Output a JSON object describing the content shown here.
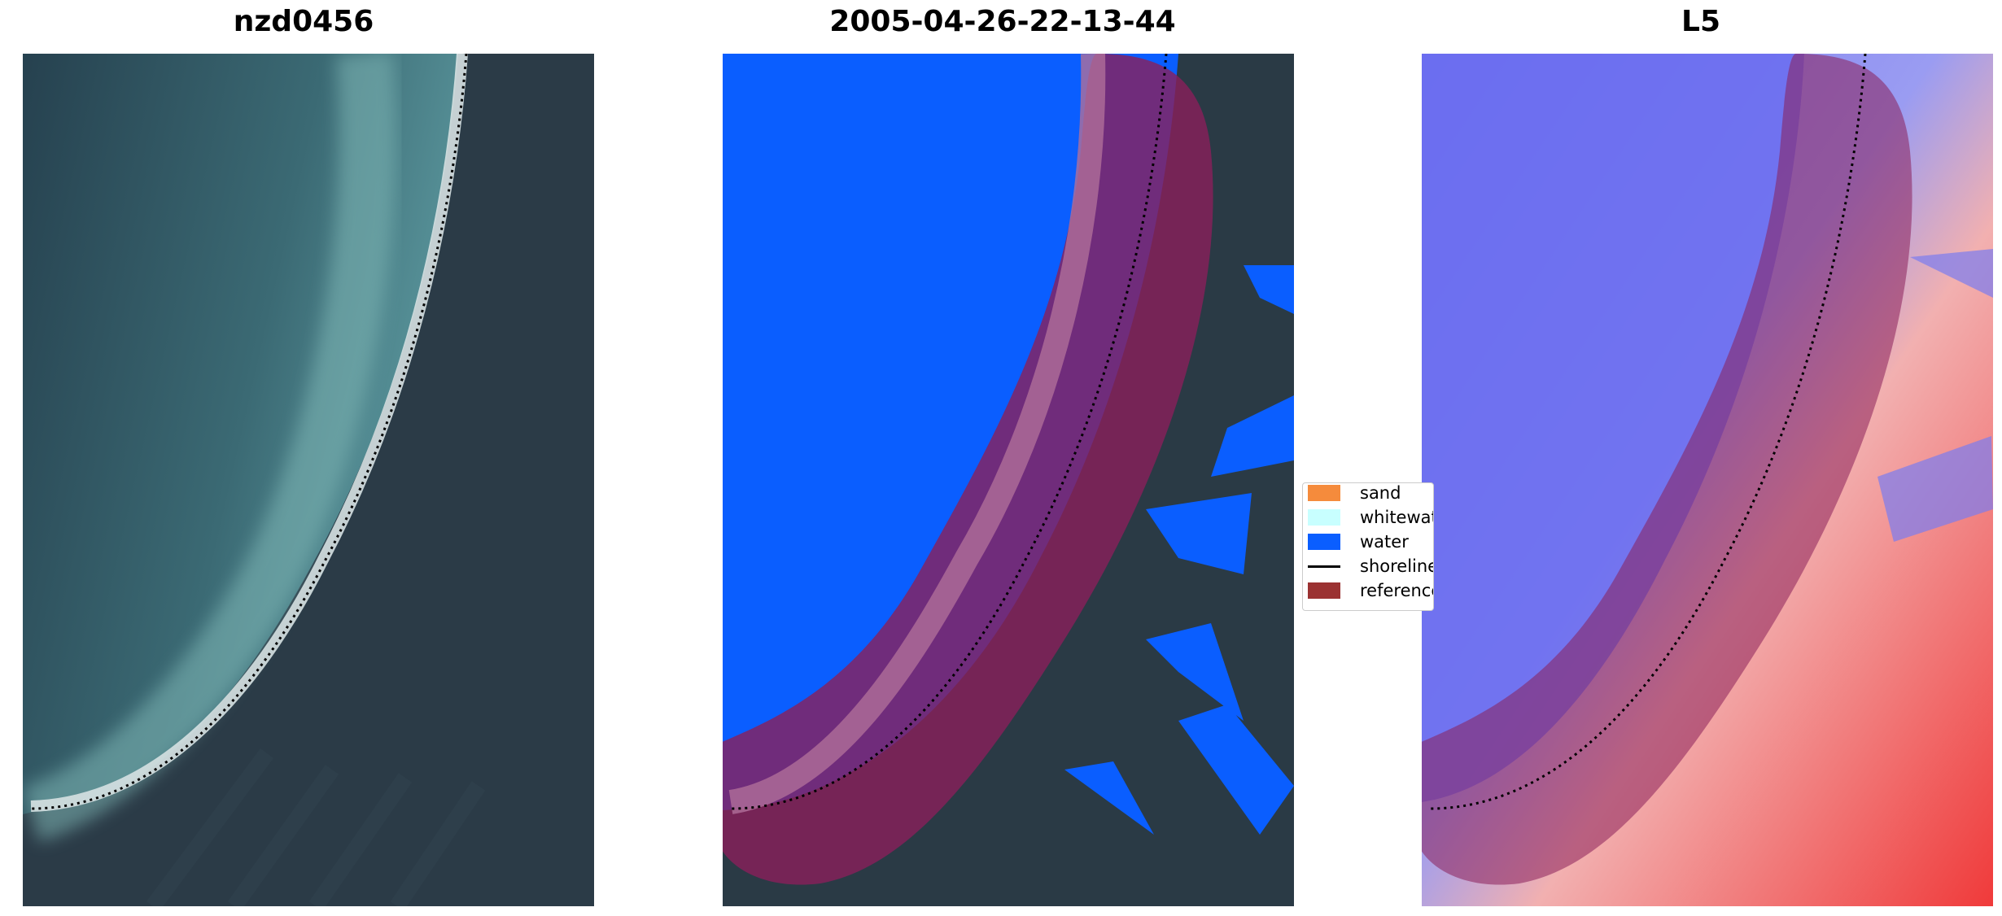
{
  "panels": [
    {
      "title": "nzd0456"
    },
    {
      "title": "2005-04-26-22-13-44"
    },
    {
      "title": "L5"
    }
  ],
  "legend": {
    "items": [
      {
        "label": "sand",
        "color": "#f58b3c",
        "kind": "patch"
      },
      {
        "label": "whitewater",
        "color": "#c8ffff",
        "kind": "patch"
      },
      {
        "label": "water",
        "color": "#0a5eff",
        "kind": "patch"
      },
      {
        "label": "shoreline",
        "color": "#000000",
        "kind": "line"
      },
      {
        "label": "reference",
        "color": "#9b3232",
        "kind": "patch"
      }
    ]
  },
  "colors": {
    "imagery_dark": "#2a3a45",
    "water_class": "#0a5eff",
    "reference_buffer": "#8a1f5a",
    "index_blue": "#6a6cf0",
    "index_red": "#f03a3a"
  }
}
